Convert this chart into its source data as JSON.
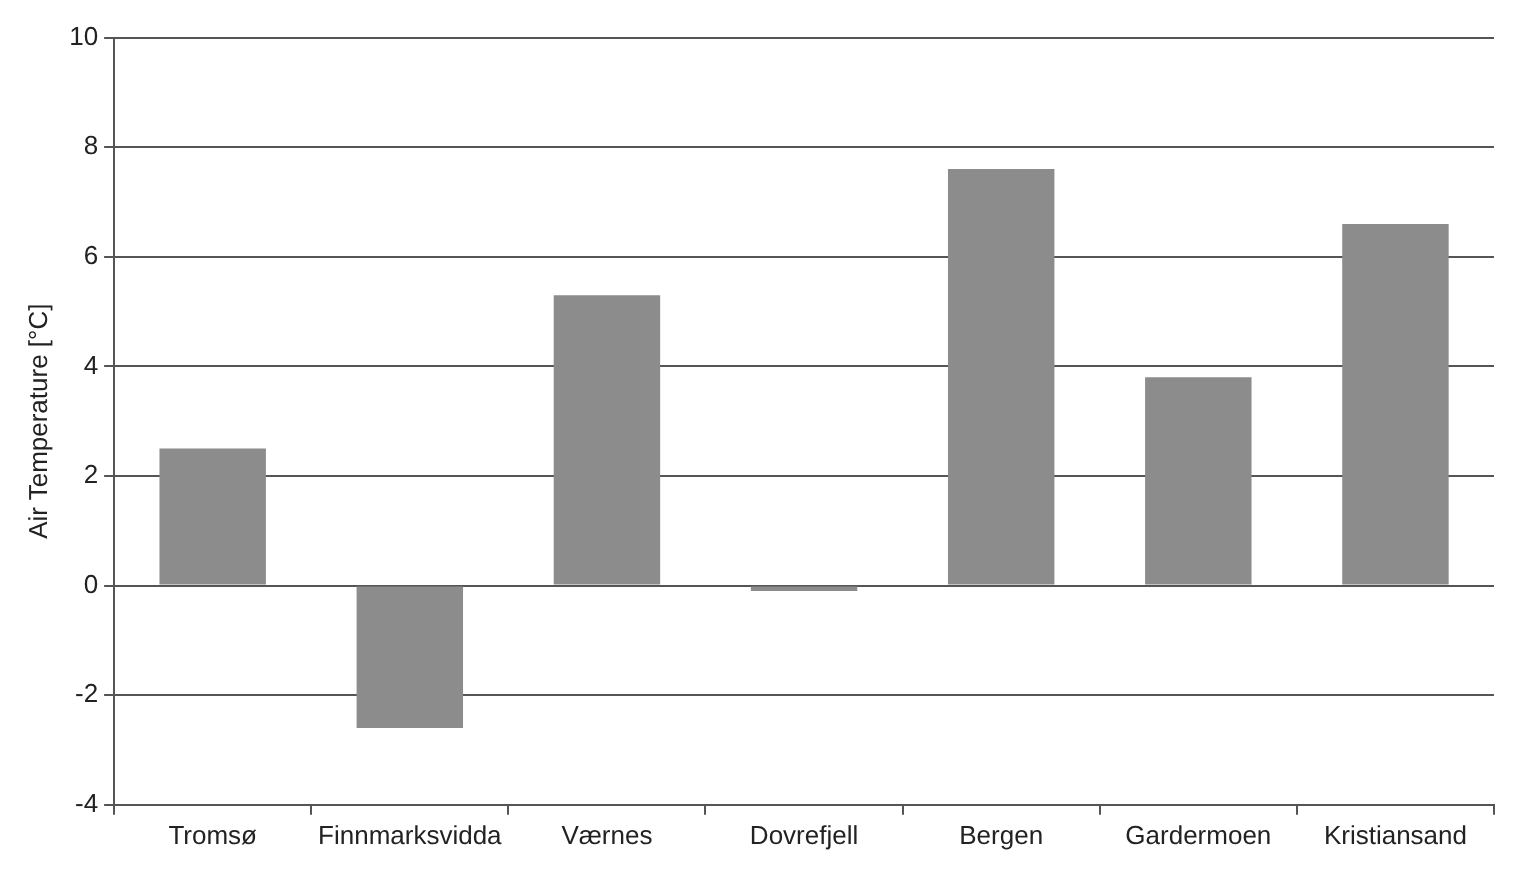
{
  "chart_data": {
    "type": "bar",
    "ylabel": "Air Temperature [°C]",
    "categories": [
      "Tromsø",
      "Finnmarksvidda",
      "Værnes",
      "Dovrefjell",
      "Bergen",
      "Gardermoen",
      "Kristiansand"
    ],
    "values": [
      2.5,
      -2.6,
      5.3,
      -0.1,
      7.6,
      3.8,
      6.6
    ],
    "color": "#8c8c8c",
    "ylim": [
      -4,
      10
    ],
    "yticks": [
      -4,
      -2,
      0,
      2,
      4,
      6,
      8,
      10
    ],
    "grid": "y",
    "legend": false
  }
}
